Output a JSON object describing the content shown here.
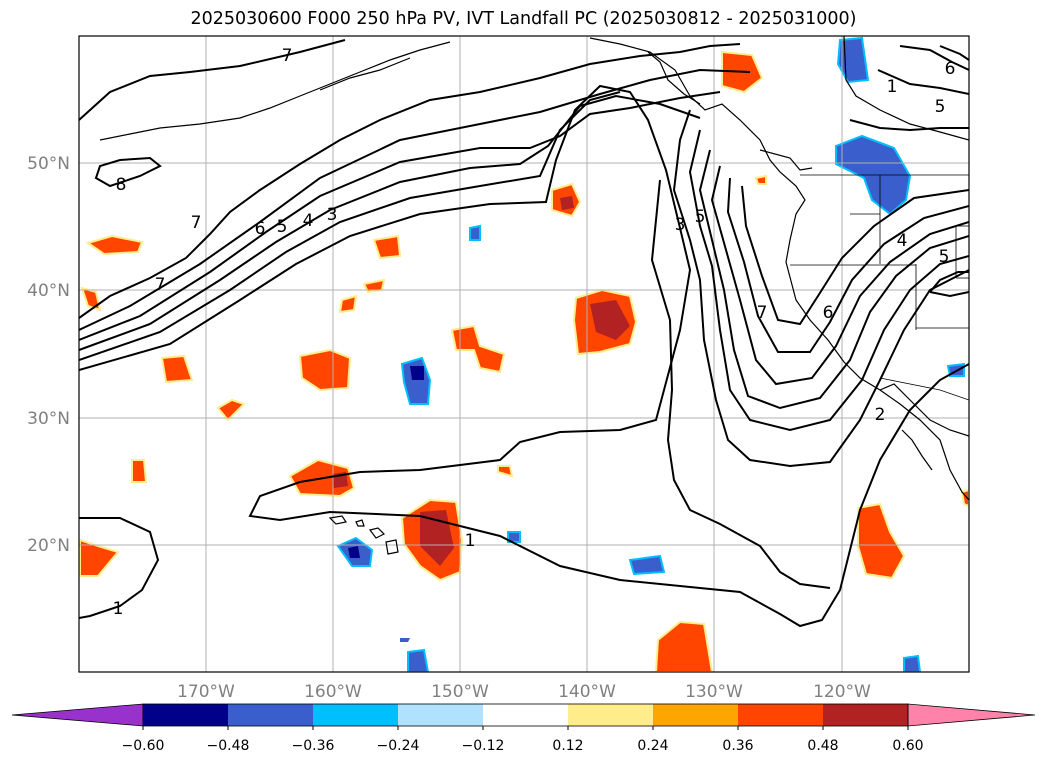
{
  "title": "2025030600 F000 250 hPa PV, IVT Landfall PC (2025030812 - 2025031000)",
  "axes": {
    "lon_ticks": [
      "170°W",
      "160°W",
      "150°W",
      "140°W",
      "130°W",
      "120°W"
    ],
    "lat_ticks": [
      "50°N",
      "40°N",
      "30°N",
      "20°N"
    ],
    "grid": true
  },
  "contour_labels": [
    "7",
    "8",
    "7",
    "7",
    "6",
    "5",
    "4",
    "3",
    "3",
    "5",
    "7",
    "6",
    "5",
    "1",
    "4",
    "6",
    "5",
    "2",
    "1",
    "1"
  ],
  "colorbar": {
    "tick_labels": [
      "−0.60",
      "−0.48",
      "−0.36",
      "−0.24",
      "−0.12",
      "0.12",
      "0.24",
      "0.36",
      "0.48",
      "0.60"
    ],
    "colors": [
      "#9932CC",
      "#00008B",
      "#3A5FCD",
      "#00BFFF",
      "#B0E2FF",
      "#FFFFFF",
      "#FFEC8B",
      "#FFA500",
      "#FF4500",
      "#B22222",
      "#FF82AB"
    ],
    "extend": "both"
  }
}
